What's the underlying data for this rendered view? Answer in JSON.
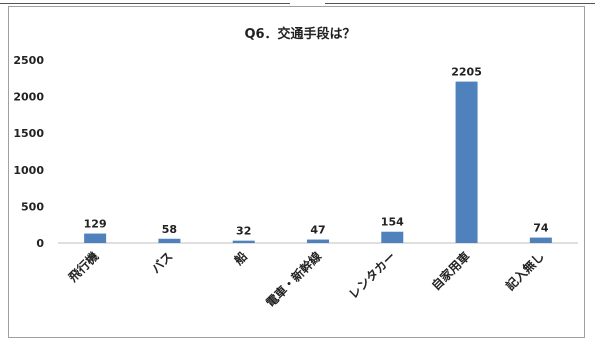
{
  "chart_data": {
    "type": "bar",
    "title": "Q6．交通手段は？",
    "categories": [
      "飛行機",
      "バス",
      "船",
      "電車・新幹線",
      "レンタカー",
      "自家用車",
      "記入無し"
    ],
    "values": [
      129,
      58,
      32,
      47,
      154,
      2205,
      74
    ],
    "ylim": [
      0,
      2500
    ],
    "yticks": [
      0,
      500,
      1000,
      1500,
      2000,
      2500
    ],
    "grid": false,
    "legend": "none",
    "bar_color": "#4f81bd"
  }
}
